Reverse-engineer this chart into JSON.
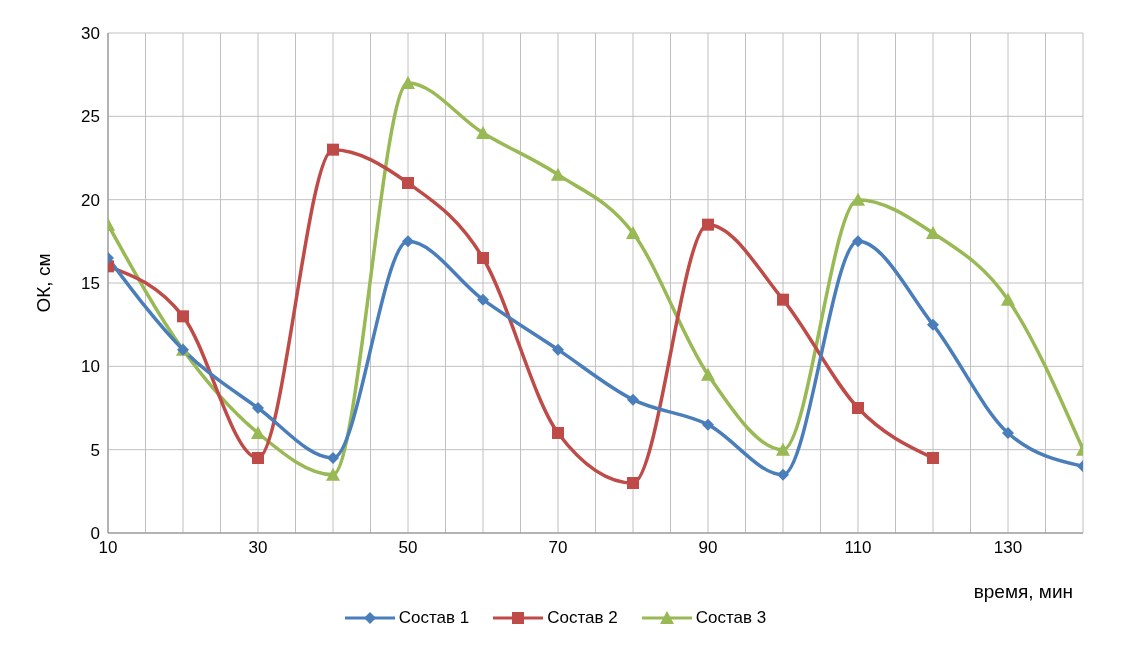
{
  "chart_data": {
    "type": "line",
    "xlabel": "время, мин",
    "ylabel": "ОК, см",
    "x": [
      10,
      20,
      30,
      40,
      50,
      60,
      70,
      80,
      90,
      100,
      110,
      120,
      130,
      140
    ],
    "series": [
      {
        "name": "Состав 1",
        "color": "#4a7ebb",
        "marker": "diamond",
        "values": [
          16.5,
          11,
          7.5,
          4.5,
          17.5,
          14,
          11,
          8,
          6.5,
          3.5,
          17.5,
          12.5,
          6,
          4
        ]
      },
      {
        "name": "Состав 2",
        "color": "#be4b48",
        "marker": "square",
        "values": [
          16,
          13,
          4.5,
          23,
          21,
          16.5,
          6,
          3,
          18.5,
          14,
          7.5,
          4.5,
          null,
          null
        ]
      },
      {
        "name": "Состав 3",
        "color": "#98b954",
        "marker": "triangle",
        "values": [
          18.5,
          11,
          6,
          3.5,
          27,
          24,
          21.5,
          18,
          9.5,
          5,
          20,
          18,
          14,
          5
        ]
      }
    ],
    "xlim": [
      10,
      140
    ],
    "xticks": [
      10,
      {
        "value": 15,
        "label": null
      },
      {
        "value": 20,
        "label": null
      },
      {
        "value": 25,
        "label": null
      },
      30,
      {
        "value": 35,
        "label": null
      },
      {
        "value": 40,
        "label": null
      },
      {
        "value": 45,
        "label": null
      },
      50,
      {
        "value": 55,
        "label": null
      },
      {
        "value": 60,
        "label": null
      },
      {
        "value": 65,
        "label": null
      },
      70,
      {
        "value": 75,
        "label": null
      },
      {
        "value": 80,
        "label": null
      },
      {
        "value": 85,
        "label": null
      },
      90,
      {
        "value": 95,
        "label": null
      },
      {
        "value": 100,
        "label": null
      },
      {
        "value": 105,
        "label": null
      },
      110,
      {
        "value": 115,
        "label": null
      },
      {
        "value": 120,
        "label": null
      },
      {
        "value": 125,
        "label": null
      },
      130,
      {
        "value": 135,
        "label": null
      },
      {
        "value": 140,
        "label": null
      }
    ],
    "ylim": [
      0,
      30
    ],
    "yticks": [
      0,
      5,
      10,
      15,
      20,
      25,
      30
    ],
    "grid": true,
    "legend": "bottom",
    "line_style": "solid"
  }
}
